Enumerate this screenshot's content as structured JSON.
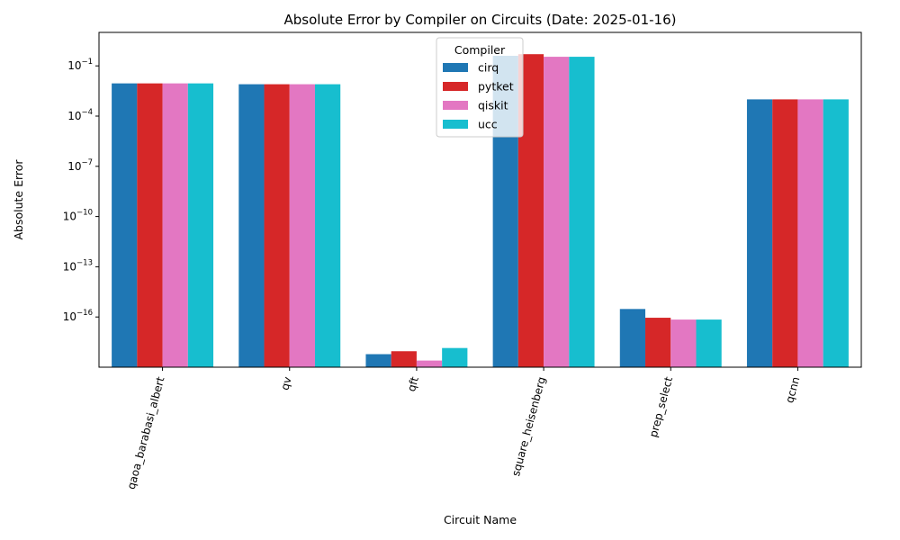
{
  "chart_data": {
    "type": "bar",
    "title": "Absolute Error by Compiler on Circuits (Date: 2025-01-16)",
    "xlabel": "Circuit Name",
    "ylabel": "Absolute Error",
    "yscale": "log",
    "ylim": [
      1e-19,
      10.0
    ],
    "y_ticks": [
      {
        "exp": "−1",
        "value": 0.1
      },
      {
        "exp": "−4",
        "value": 0.0001
      },
      {
        "exp": "−7",
        "value": 1e-07
      },
      {
        "exp": "−10",
        "value": 1e-10
      },
      {
        "exp": "−13",
        "value": 1e-13
      },
      {
        "exp": "−16",
        "value": 1e-16
      }
    ],
    "y_tick_base": "10",
    "categories": [
      "qaoa_barabasi_albert",
      "qv",
      "qft",
      "square_heisenberg",
      "prep_select",
      "qcnn"
    ],
    "legend": {
      "title": "Compiler",
      "placement": "top-center"
    },
    "grid": false,
    "series": [
      {
        "name": "cirq",
        "color": "#1f77b4",
        "values": [
          0.009,
          0.008,
          6e-19,
          0.4,
          3e-16,
          0.001
        ]
      },
      {
        "name": "pytket",
        "color": "#d62728",
        "values": [
          0.009,
          0.008,
          9e-19,
          0.5,
          9e-17,
          0.001
        ]
      },
      {
        "name": "qiskit",
        "color": "#e377c2",
        "values": [
          0.009,
          0.008,
          2.5e-19,
          0.35,
          7e-17,
          0.001
        ]
      },
      {
        "name": "ucc",
        "color": "#17becf",
        "values": [
          0.009,
          0.008,
          1.4e-18,
          0.35,
          7e-17,
          0.001
        ]
      }
    ]
  }
}
